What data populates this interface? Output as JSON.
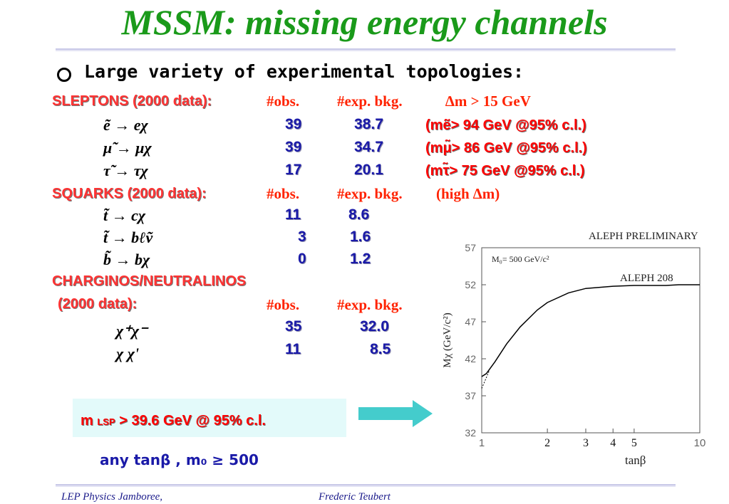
{
  "title": "MSSM: missing energy channels",
  "subtitle": "Large variety of experimental topologies:",
  "sleptons": {
    "label": "SLEPTONS (2000 data):",
    "headers": [
      "#obs.",
      "#exp. bkg.",
      "∆m > 15 GeV"
    ],
    "rows": [
      {
        "process": "ẽ → eχ",
        "obs": "39",
        "bkg": "38.7",
        "limit": "(mẽ> 94 GeV  @95% c.l.)"
      },
      {
        "process": "μ̃ → μχ",
        "obs": "39",
        "bkg": "34.7",
        "limit": "(mμ̃> 86 GeV @95% c.l.)"
      },
      {
        "process": "τ̃ → τχ",
        "obs": "17",
        "bkg": "20.1",
        "limit": "(mτ̃> 75 GeV  @95% c.l.)"
      }
    ]
  },
  "squarks": {
    "label": "SQUARKS (2000 data):",
    "headers": [
      "#obs.",
      "#exp. bkg.",
      "(high ∆m)"
    ],
    "rows": [
      {
        "process": "t̃ → cχ",
        "obs": "11",
        "bkg": "8.6"
      },
      {
        "process": "t̃ → bℓṽ",
        "obs": "3",
        "bkg": "1.6"
      },
      {
        "process": "b̃ → bχ",
        "obs": "0",
        "bkg": "1.2"
      }
    ]
  },
  "charginos": {
    "label_line1": "CHARGINOS/NEUTRALINOS",
    "label_line2": "(2000 data):",
    "headers": [
      "#obs.",
      "#exp. bkg."
    ],
    "rows": [
      {
        "process": "χ⁺χ⁻",
        "obs": "35",
        "bkg": "32.0"
      },
      {
        "process": "χ χ'",
        "obs": "11",
        "bkg": "8.5"
      }
    ]
  },
  "result_box": {
    "m": "m",
    "sub": "LSP",
    "text": ">  39.6 GeV  @ 95% c.l."
  },
  "condition": "any tanβ , m₀ ≥ 500",
  "plot": {
    "title": "ALEPH PRELIMINARY",
    "annotation": "M₀= 500 GeV/c²",
    "curve_label": "ALEPH 208",
    "ylabel": "Mχ (GeV/c²)",
    "xlabel": "tanβ"
  },
  "chart_data": {
    "type": "line",
    "title": "ALEPH PRELIMINARY",
    "xlabel": "tanβ",
    "ylabel": "Mχ (GeV/c²)",
    "xscale": "log",
    "xlim": [
      1,
      10
    ],
    "ylim": [
      32,
      57
    ],
    "x_ticks": [
      "1",
      "2",
      "3",
      "4",
      "5",
      "10"
    ],
    "y_ticks": [
      "32",
      "37",
      "42",
      "47",
      "52",
      "57"
    ],
    "series": [
      {
        "name": "ALEPH 208",
        "x": [
          1.0,
          1.05,
          1.15,
          1.3,
          1.5,
          1.8,
          2.0,
          2.5,
          3.0,
          4.0,
          5.0,
          6.0,
          7.0,
          8.0,
          10.0
        ],
        "y": [
          39.6,
          40.0,
          41.6,
          44.0,
          46.3,
          48.6,
          49.6,
          50.9,
          51.5,
          51.8,
          51.9,
          51.9,
          51.9,
          52.0,
          52.0
        ]
      }
    ],
    "colors": {
      "curve": "#000000",
      "axes": "#555555"
    }
  },
  "footer": {
    "left": "LEP Physics Jamboree,",
    "right": "Frederic Teubert"
  }
}
